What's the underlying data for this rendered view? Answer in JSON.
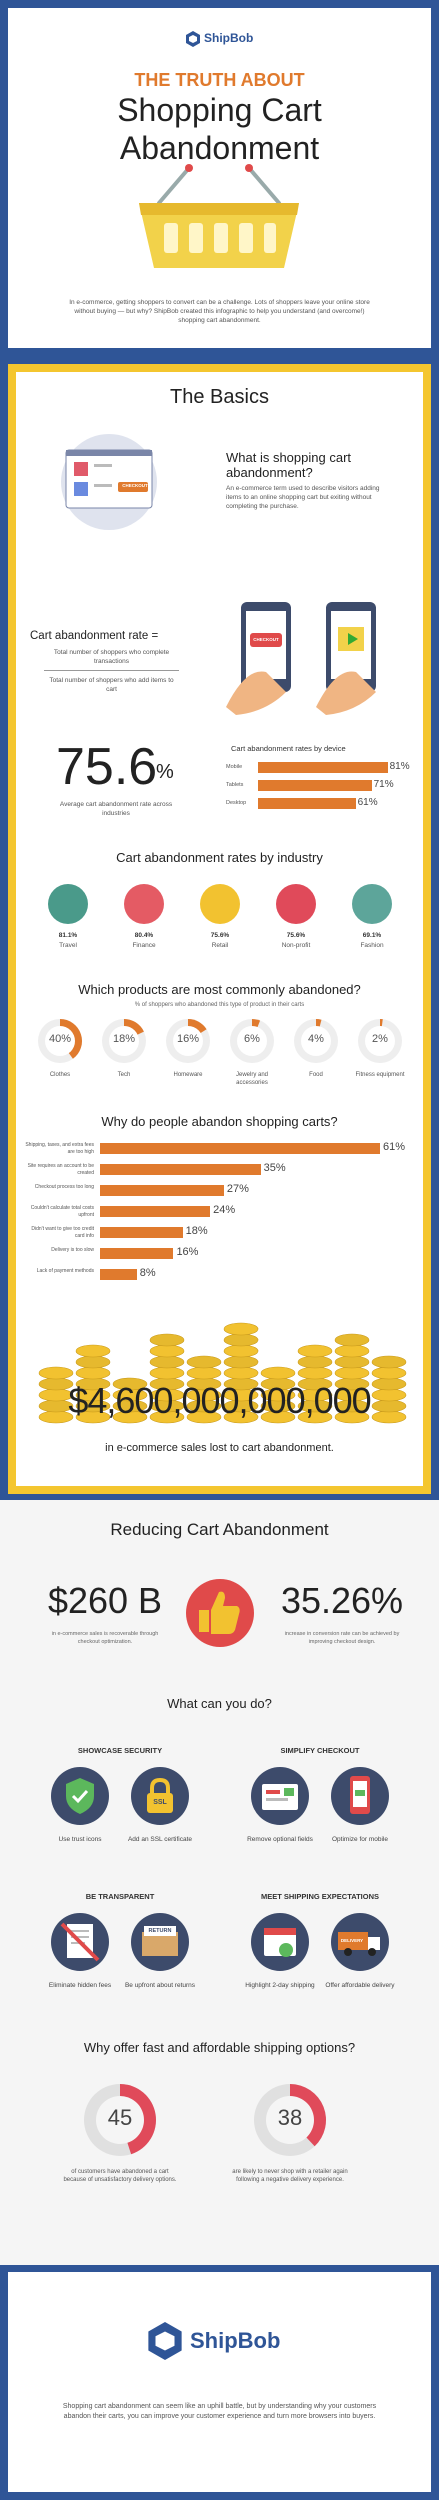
{
  "header": {
    "brand": "ShipBob",
    "kicker": "THE TRUTH ABOUT",
    "title_line1": "Shopping Cart",
    "title_line2": "Abandonment",
    "intro": "In e-commerce, getting shoppers to convert can be a challenge. Lots of shoppers leave your online store without buying — but why? ShipBob created this infographic to help you understand (and overcome!) shopping cart abandonment."
  },
  "basics": {
    "heading": "The Basics",
    "what_title": "What is shopping cart abandonment?",
    "what_body": "An e-commerce term used to describe visitors adding items to an online shopping cart but exiting without completing the purchase.",
    "checkout_label": "CHECKOUT",
    "rate_label": "Cart abandonment rate =",
    "numerator": "Total number of shoppers who complete transactions",
    "denominator": "Total number of shoppers who add items to cart",
    "avg_value": "75.6",
    "avg_unit": "%",
    "avg_caption": "Average cart abandonment rate across industries",
    "device_title": "Cart abandonment rates by device",
    "devices": [
      {
        "name": "Mobile",
        "value": 81
      },
      {
        "name": "Tablets",
        "value": 71
      },
      {
        "name": "Desktop",
        "value": 61
      }
    ],
    "industry_title": "Cart abandonment rates by industry",
    "industries": [
      {
        "value": "81.1%",
        "name": "Travel",
        "color": "#4a9a8a"
      },
      {
        "value": "80.4%",
        "name": "Finance",
        "color": "#e45b64"
      },
      {
        "value": "75.6%",
        "name": "Retail",
        "color": "#f2c230"
      },
      {
        "value": "75.6%",
        "name": "Non-profit",
        "color": "#e04a5a"
      },
      {
        "value": "69.1%",
        "name": "Fashion",
        "color": "#5da59a"
      }
    ],
    "products_title": "Which products are most commonly abandoned?",
    "products_sub": "% of shoppers who abandoned this type of product in their carts",
    "products": [
      {
        "value": 40,
        "name": "Clothes"
      },
      {
        "value": 18,
        "name": "Tech"
      },
      {
        "value": 16,
        "name": "Homeware"
      },
      {
        "value": 6,
        "name": "Jewelry and accessories"
      },
      {
        "value": 4,
        "name": "Food"
      },
      {
        "value": 2,
        "name": "Fitness equipment"
      }
    ],
    "why_title": "Why do people abandon shopping carts?",
    "reasons": [
      {
        "label": "Shipping, taxes, and extra fees are too high",
        "value": 61
      },
      {
        "label": "Site requires an account to be created",
        "value": 35
      },
      {
        "label": "Checkout process too long",
        "value": 27
      },
      {
        "label": "Couldn't calculate total costs upfront",
        "value": 24
      },
      {
        "label": "Didn't want to give too credit card info",
        "value": 18
      },
      {
        "label": "Delivery is too slow",
        "value": 16
      },
      {
        "label": "Lack of payment methods",
        "value": 8
      }
    ],
    "lost_value": "$4,600,000,000,000",
    "lost_caption": "in e-commerce sales lost to cart abandonment."
  },
  "reducing": {
    "heading": "Reducing Cart Abandonment",
    "stat1_value": "$260 B",
    "stat1_caption": "in e-commerce sales is recoverable through checkout optimization.",
    "stat2_value": "35.26%",
    "stat2_caption": "increase in conversion rate can be achieved by improving checkout design.",
    "what_do": "What can you do?",
    "groups": [
      {
        "title": "SHOWCASE SECURITY",
        "items": [
          "Use trust icons",
          "Add an SSL certificate"
        ]
      },
      {
        "title": "SIMPLIFY CHECKOUT",
        "items": [
          "Remove optional fields",
          "Optimize for mobile"
        ]
      },
      {
        "title": "BE TRANSPARENT",
        "items": [
          "Eliminate hidden fees",
          "Be upfront about returns"
        ]
      },
      {
        "title": "MEET SHIPPING EXPECTATIONS",
        "items": [
          "Highlight 2-day shipping",
          "Offer affordable delivery"
        ]
      }
    ],
    "ssl": "SSL",
    "returns": "RETURN",
    "delivery": "DELIVERY",
    "ship_title": "Why offer fast and affordable shipping options?",
    "ship1_value": "45",
    "ship1_caption": "of customers have abandoned a cart because of unsatisfactory delivery options.",
    "ship2_value": "38",
    "ship2_caption": "are likely to never shop with a retailer again following a negative delivery experience."
  },
  "footer": {
    "brand": "ShipBob",
    "body": "Shopping cart abandonment can seem like an uphill battle, but by understanding why your customers abandon their carts, you can improve your customer experience and turn more browsers into buyers."
  }
}
